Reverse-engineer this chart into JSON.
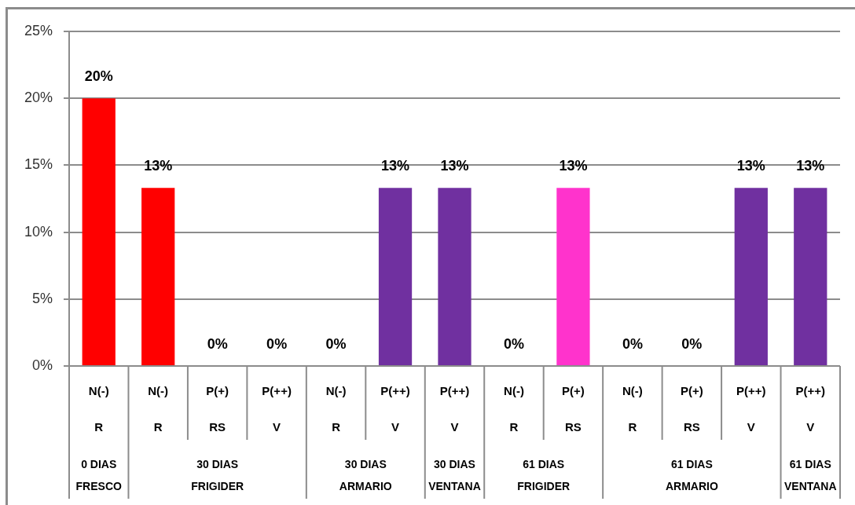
{
  "chart_data": {
    "type": "bar",
    "categories": [
      [
        "N(-)",
        "R",
        "0 DIAS\nFRESCO"
      ],
      [
        "N(-)",
        "R",
        "30 DIAS\nFRIGIDER"
      ],
      [
        "P(+)",
        "RS",
        null
      ],
      [
        "P(++)",
        "V",
        null
      ],
      [
        "N(-)",
        "R",
        "30 DIAS\nARMARIO"
      ],
      [
        "P(++)",
        "V",
        null
      ],
      [
        "P(++)",
        "V",
        "30 DIAS\nVENTANA"
      ],
      [
        "N(-)",
        "R",
        "61 DIAS\nFRIGIDER"
      ],
      [
        "P(+)",
        "RS",
        null
      ],
      [
        "N(-)",
        "R",
        "61 DIAS\nARMARIO"
      ],
      [
        "P(+)",
        "RS",
        null
      ],
      [
        "P(++)",
        "V",
        null
      ],
      [
        "P(++)",
        "V",
        "61 DIAS\nVENTANA"
      ]
    ],
    "values": [
      20,
      13.3,
      0,
      0,
      0,
      13.3,
      13.3,
      0,
      13.3,
      0,
      0,
      13.3,
      13.3
    ],
    "colors": [
      "#ff0000",
      "#ff0000",
      "#ff0000",
      "#ff0000",
      "#7030a0",
      "#7030a0",
      "#7030a0",
      "#ff33cc",
      "#ff33cc",
      "#7030a0",
      "#7030a0",
      "#7030a0",
      "#7030a0"
    ],
    "value_labels": [
      "20%",
      "13%",
      "0%",
      "0%",
      "0%",
      "13%",
      "13%",
      "0%",
      "13%",
      "0%",
      "0%",
      "13%",
      "13%"
    ],
    "ylim": [
      0,
      25
    ],
    "yticks": [
      {
        "value": 0,
        "label": "0%"
      },
      {
        "value": 5,
        "label": "5%"
      },
      {
        "value": 10,
        "label": "10%"
      },
      {
        "value": 15,
        "label": "15%"
      },
      {
        "value": 20,
        "label": "20%"
      },
      {
        "value": 25,
        "label": "25%"
      }
    ],
    "grid": "y"
  }
}
